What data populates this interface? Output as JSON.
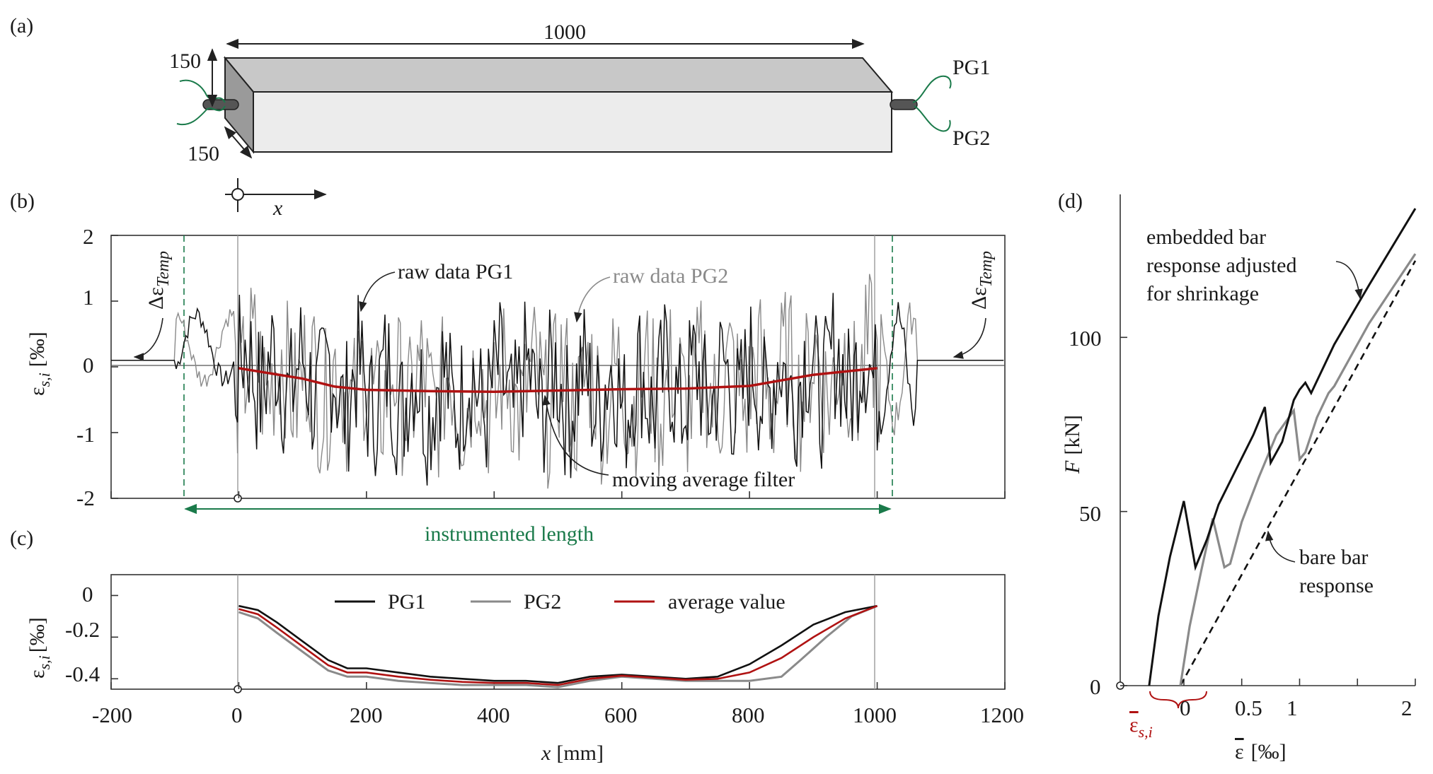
{
  "panels": {
    "a": "(a)",
    "b": "(b)",
    "c": "(c)",
    "d": "(d)"
  },
  "specimen": {
    "length_label": "1000",
    "height_label": "150",
    "width_label": "150",
    "gauge_top": "PG1",
    "gauge_bottom": "PG2",
    "coord_label": "x"
  },
  "colors": {
    "pg1": "#111111",
    "pg2": "#8a8a8a",
    "average": "#b01212",
    "green": "#1a7a4a",
    "dim": "#333333"
  },
  "chart_data": [
    {
      "id": "b",
      "type": "line",
      "ylabel_main": "ε",
      "ylabel_sub": "s,i",
      "ylabel_unit": "[‰]",
      "yticks": [
        "2",
        "1",
        "0",
        "-1",
        "-2"
      ],
      "ylim": [
        -2,
        2
      ],
      "xlim": [
        -200,
        1200
      ],
      "annotations": {
        "raw_pg1": "raw data PG1",
        "raw_pg2": "raw data PG2",
        "moving_average": "moving average filter",
        "temp_left": "ΔεTemp",
        "temp_right": "ΔεTemp",
        "temp_main": "Δε",
        "temp_sub": "Temp",
        "instrumented": "instrumented length"
      },
      "instrumented_range": [
        -95,
        1010
      ],
      "specimen_ends": [
        0,
        1000
      ],
      "series": [
        {
          "name": "PG1 raw",
          "noise": "high-frequency oscillation roughly between -1.5 and 1.5 within 0–1000 mm",
          "outside_value": 0.1
        },
        {
          "name": "PG2 raw",
          "noise": "high-frequency oscillation roughly between -1.7 and 1.9 within 0–1000 mm",
          "outside_value": 0.1
        },
        {
          "name": "moving average",
          "x": [
            0,
            100,
            150,
            200,
            300,
            400,
            500,
            600,
            700,
            800,
            900,
            1000
          ],
          "y": [
            -0.02,
            -0.18,
            -0.3,
            -0.35,
            -0.37,
            -0.38,
            -0.36,
            -0.34,
            -0.33,
            -0.29,
            -0.12,
            -0.02
          ]
        }
      ]
    },
    {
      "id": "c",
      "type": "line",
      "ylabel_main": "ε",
      "ylabel_sub": "s,i",
      "ylabel_unit": "[‰]",
      "xlabel_main": "x",
      "xlabel_unit": "[mm]",
      "xticks": [
        "-200",
        "0",
        "200",
        "400",
        "600",
        "800",
        "1000",
        "1200"
      ],
      "yticks": [
        "0",
        "-0.2",
        "-0.4"
      ],
      "xlim": [
        -200,
        1200
      ],
      "ylim": [
        -0.45,
        0.1
      ],
      "legend": {
        "pg1": "PG1",
        "pg2": "PG2",
        "avg": "average value"
      },
      "series": [
        {
          "name": "PG1",
          "x": [
            0,
            30,
            60,
            100,
            140,
            170,
            200,
            250,
            300,
            350,
            400,
            450,
            500,
            550,
            600,
            650,
            700,
            750,
            800,
            850,
            900,
            950,
            1000
          ],
          "y": [
            -0.05,
            -0.07,
            -0.13,
            -0.22,
            -0.31,
            -0.35,
            -0.35,
            -0.37,
            -0.39,
            -0.4,
            -0.41,
            -0.41,
            -0.42,
            -0.39,
            -0.38,
            -0.39,
            -0.4,
            -0.39,
            -0.33,
            -0.24,
            -0.14,
            -0.08,
            -0.05
          ]
        },
        {
          "name": "PG2",
          "x": [
            0,
            30,
            60,
            100,
            140,
            170,
            200,
            250,
            300,
            350,
            400,
            450,
            500,
            550,
            600,
            650,
            700,
            750,
            800,
            850,
            880,
            920,
            960,
            1000
          ],
          "y": [
            -0.08,
            -0.11,
            -0.18,
            -0.27,
            -0.36,
            -0.39,
            -0.39,
            -0.41,
            -0.42,
            -0.43,
            -0.43,
            -0.43,
            -0.44,
            -0.41,
            -0.39,
            -0.4,
            -0.41,
            -0.41,
            -0.41,
            -0.39,
            -0.31,
            -0.2,
            -0.1,
            -0.05
          ]
        },
        {
          "name": "average value",
          "x": [
            0,
            30,
            60,
            100,
            140,
            170,
            200,
            250,
            300,
            350,
            400,
            450,
            500,
            550,
            600,
            650,
            700,
            750,
            800,
            850,
            900,
            950,
            1000
          ],
          "y": [
            -0.065,
            -0.09,
            -0.155,
            -0.245,
            -0.335,
            -0.37,
            -0.37,
            -0.39,
            -0.405,
            -0.415,
            -0.42,
            -0.42,
            -0.43,
            -0.4,
            -0.385,
            -0.395,
            -0.405,
            -0.4,
            -0.37,
            -0.3,
            -0.2,
            -0.11,
            -0.05
          ]
        }
      ]
    },
    {
      "id": "d",
      "type": "line",
      "ylabel_main": "F",
      "ylabel_unit": "[kN]",
      "xlabel_main": "ε",
      "xlabel_unit": "[‰]",
      "xticks": [
        "0",
        "0.5",
        "1",
        "2"
      ],
      "yticks": [
        "0",
        "50",
        "100"
      ],
      "xlim": [
        -0.55,
        2
      ],
      "ylim": [
        0,
        137
      ],
      "offset_label_main": "ε",
      "offset_label_sub": "s,i",
      "annotations": {
        "embedded_1": "embedded bar",
        "embedded_2": "response adjusted",
        "embedded_3": "for shrinkage",
        "bare_1": "bare bar",
        "bare_2": "response"
      },
      "series": [
        {
          "name": "embedded bar response adjusted for shrinkage",
          "x": [
            -0.3,
            -0.22,
            -0.12,
            0,
            0.1,
            0.2,
            0.3,
            0.45,
            0.6,
            0.7,
            0.75,
            0.85,
            0.95,
            1.0,
            1.05,
            1.1,
            1.3,
            1.6,
            2.0
          ],
          "y": [
            0,
            20,
            37,
            53,
            34,
            42,
            52,
            62,
            72,
            80,
            64,
            70,
            82,
            85,
            87,
            84,
            98,
            115,
            137
          ]
        },
        {
          "name": "shifted embedded response",
          "x": [
            -0.03,
            0.05,
            0.15,
            0.25,
            0.35,
            0.4,
            0.5,
            0.65,
            0.8,
            0.95,
            1.0,
            1.05,
            1.15,
            1.25,
            1.3,
            1.4,
            1.6,
            1.8,
            2.0
          ],
          "y": [
            0,
            17,
            33,
            48,
            34,
            35,
            47,
            60,
            72,
            79,
            65,
            67,
            77,
            84,
            86,
            92,
            104,
            114,
            124
          ]
        },
        {
          "name": "bare bar response",
          "x": [
            -0.03,
            2.0
          ],
          "y": [
            0,
            122
          ]
        }
      ]
    }
  ]
}
